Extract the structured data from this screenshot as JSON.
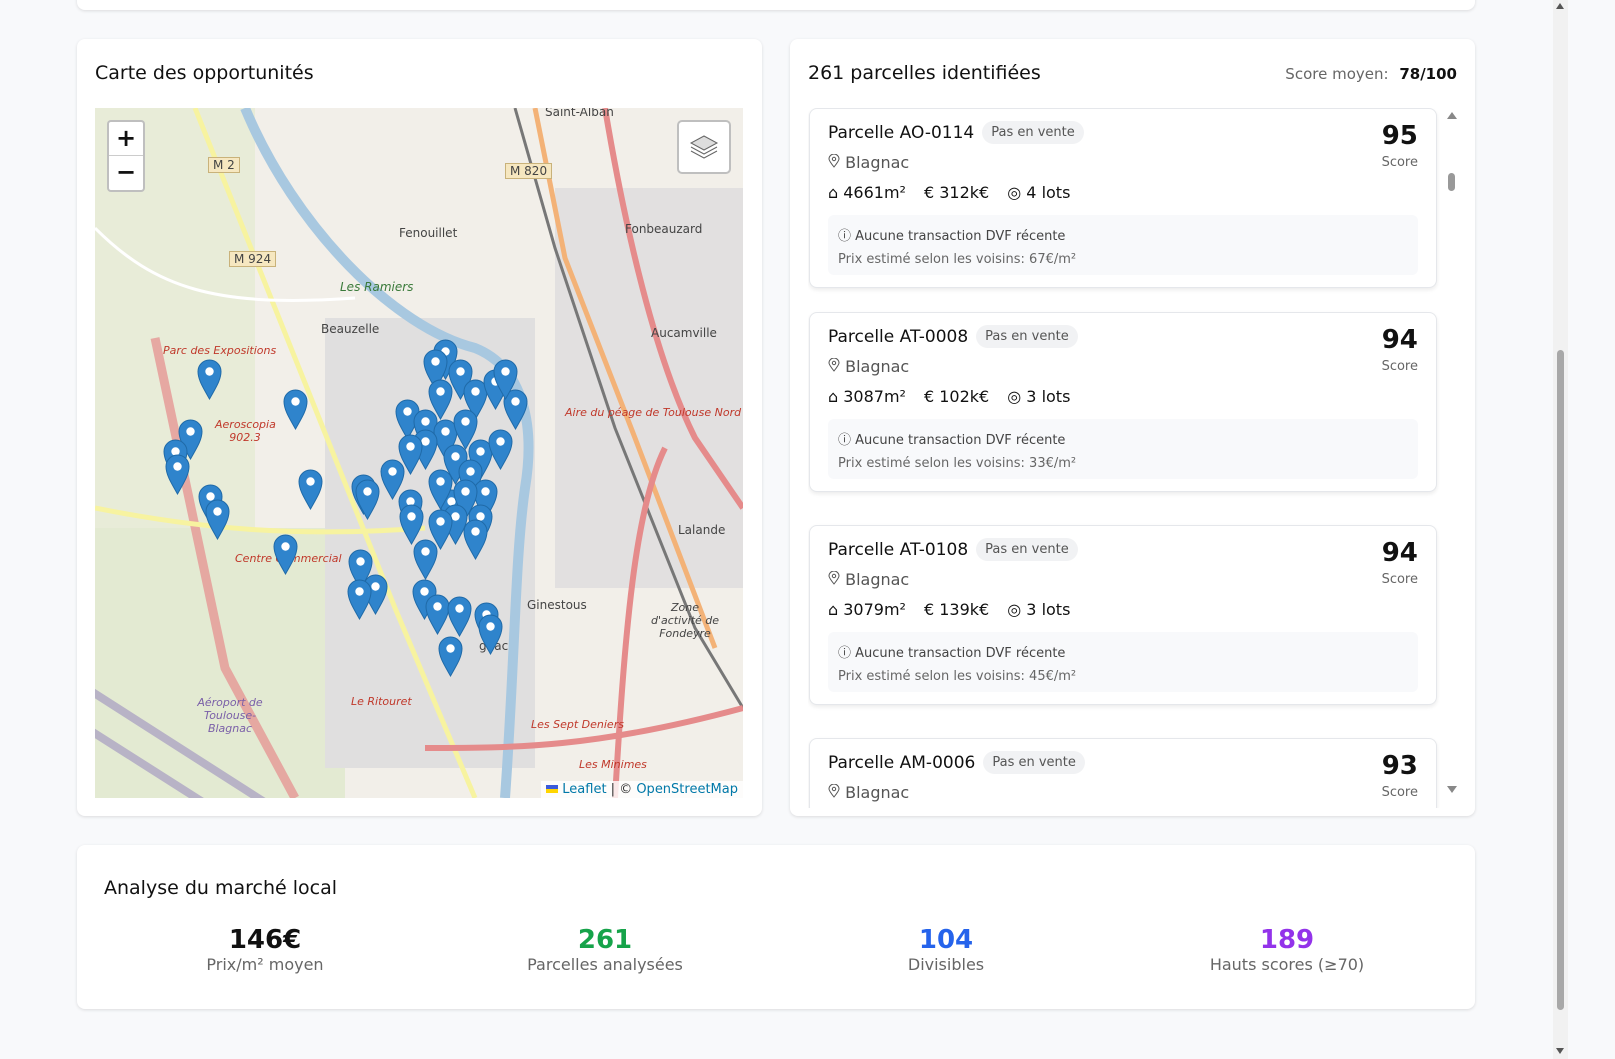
{
  "map_card": {
    "title": "Carte des opportunités",
    "zoom_in": "+",
    "zoom_out": "−",
    "attribution_leaflet": "Leaflet",
    "attribution_sep": " | © ",
    "attribution_osm": "OpenStreetMap",
    "labels": {
      "saint_alban": "Saint-Alban",
      "fenouillet": "Fenouillet",
      "fonbeauzard": "Fonbeauzard",
      "beauzelle": "Beauzelle",
      "aucamville": "Aucamville",
      "les_ramiers": "Les Ramiers",
      "ginestous": "Ginestous",
      "lalande": "Lalande",
      "blagnac": "gnac",
      "m2": "M 2",
      "m924": "M 924",
      "m820": "M 820",
      "parc_expo": "Parc des Expositions",
      "aeroscopia": "Aeroscopia 902.3",
      "centre_commercial": "Centre Commercial",
      "aire_peage": "Aire du péage de Toulouse Nord",
      "aeroport": "Aéroport de Toulouse-Blagnac",
      "le_ritouret": "Le Ritouret",
      "sept_deniers": "Les Sept Deniers",
      "minimes": "Les Minimes",
      "zone_fondeyre": "Zone d'activité de Fondeyre"
    }
  },
  "list_card": {
    "title": "261 parcelles identifiées",
    "avg_label": "Score moyen:",
    "avg_value": "78/100",
    "items": [
      {
        "name": "Parcelle AO-0114",
        "badge": "Pas en vente",
        "city": "Blagnac",
        "area": "4661m²",
        "price": "312k€",
        "lots": "4 lots",
        "note1": "Aucune transaction DVF récente",
        "note2": "Prix estimé selon les voisins: 67€/m²",
        "score": "95",
        "score_label": "Score"
      },
      {
        "name": "Parcelle AT-0008",
        "badge": "Pas en vente",
        "city": "Blagnac",
        "area": "3087m²",
        "price": "102k€",
        "lots": "3 lots",
        "note1": "Aucune transaction DVF récente",
        "note2": "Prix estimé selon les voisins: 33€/m²",
        "score": "94",
        "score_label": "Score"
      },
      {
        "name": "Parcelle AT-0108",
        "badge": "Pas en vente",
        "city": "Blagnac",
        "area": "3079m²",
        "price": "139k€",
        "lots": "3 lots",
        "note1": "Aucune transaction DVF récente",
        "note2": "Prix estimé selon les voisins: 45€/m²",
        "score": "94",
        "score_label": "Score"
      },
      {
        "name": "Parcelle AM-0006",
        "badge": "Pas en vente",
        "city": "Blagnac",
        "score": "93",
        "score_label": "Score"
      }
    ]
  },
  "market": {
    "title": "Analyse du marché local",
    "stats": [
      {
        "value": "146€",
        "label": "Prix/m² moyen",
        "color": "#111111"
      },
      {
        "value": "261",
        "label": "Parcelles analysées",
        "color": "#16a34a"
      },
      {
        "value": "104",
        "label": "Divisibles",
        "color": "#2563eb"
      },
      {
        "value": "189",
        "label": "Hauts scores (≥70)",
        "color": "#9333ea"
      }
    ]
  },
  "colors": {
    "marker": "#2f84cc",
    "accent_link": "#0078a8"
  }
}
